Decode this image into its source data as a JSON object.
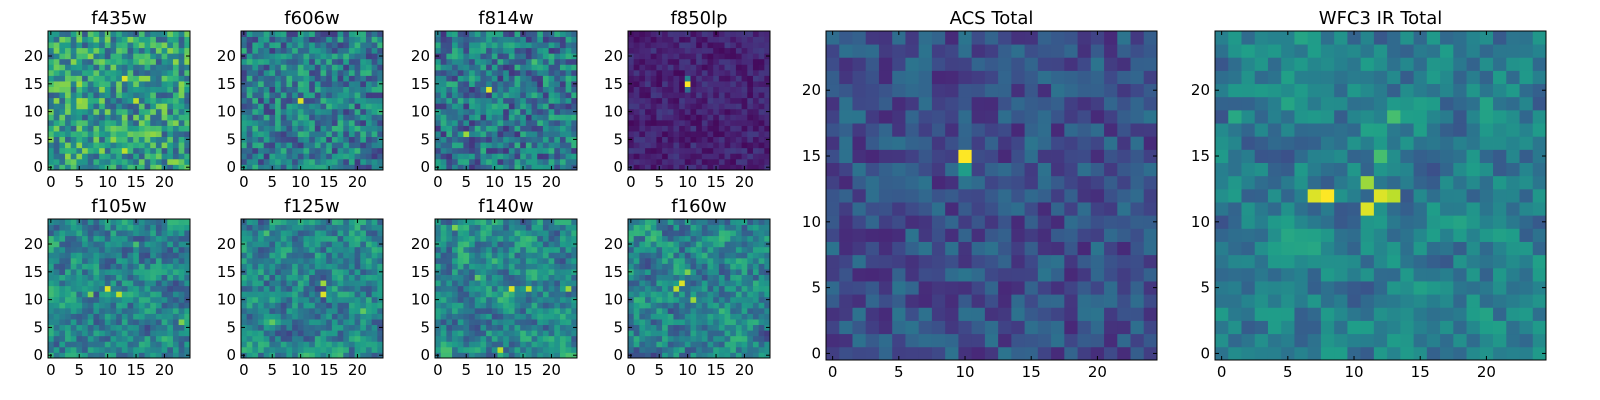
{
  "figure": {
    "description_panels": "Eight small heatmap cutouts (one per filter) plus two combined heatmaps"
  },
  "chart_data": [
    {
      "type": "heatmap",
      "title": "f435w",
      "xticks": [
        0,
        5,
        10,
        15,
        20
      ],
      "yticks": [
        0,
        5,
        10,
        15,
        20
      ],
      "xlim": [
        0,
        25
      ],
      "ylim": [
        0,
        25
      ],
      "pattern": "noise",
      "noise_base": 0.55,
      "noise_amp": 0.28,
      "hotspots": [
        [
          13,
          16,
          0.95
        ],
        [
          15,
          12,
          0.9
        ],
        [
          13,
          3,
          0.9
        ],
        [
          5,
          15,
          0.85
        ],
        [
          5,
          12,
          0.85
        ],
        [
          20,
          22,
          0.8
        ],
        [
          12,
          21,
          0.75
        ]
      ]
    },
    {
      "type": "heatmap",
      "title": "f606w",
      "xticks": [
        0,
        5,
        10,
        15,
        20
      ],
      "yticks": [
        0,
        5,
        10,
        15,
        20
      ],
      "xlim": [
        0,
        25
      ],
      "ylim": [
        0,
        25
      ],
      "pattern": "noise",
      "noise_base": 0.42,
      "noise_amp": 0.25,
      "hotspots": [
        [
          10,
          12,
          0.95
        ],
        [
          13,
          19,
          0.6
        ],
        [
          19,
          2,
          0.55
        ]
      ]
    },
    {
      "type": "heatmap",
      "title": "f814w",
      "xticks": [
        0,
        5,
        10,
        15,
        20
      ],
      "yticks": [
        0,
        5,
        10,
        15,
        20
      ],
      "xlim": [
        0,
        25
      ],
      "ylim": [
        0,
        25
      ],
      "pattern": "noise",
      "noise_base": 0.4,
      "noise_amp": 0.25,
      "hotspots": [
        [
          9,
          14,
          0.95
        ],
        [
          5,
          6,
          0.85
        ],
        [
          17,
          19,
          0.7
        ],
        [
          3,
          22,
          0.55
        ]
      ]
    },
    {
      "type": "heatmap",
      "title": "f850lp",
      "xticks": [
        0,
        5,
        10,
        15,
        20
      ],
      "yticks": [
        0,
        5,
        10,
        15,
        20
      ],
      "xlim": [
        0,
        25
      ],
      "ylim": [
        0,
        25
      ],
      "pattern": "noise",
      "noise_base": 0.1,
      "noise_amp": 0.08,
      "hotspots": [
        [
          10,
          15,
          1.0
        ],
        [
          10,
          16,
          0.45
        ],
        [
          10,
          14,
          0.35
        ]
      ]
    },
    {
      "type": "heatmap",
      "title": "f105w",
      "xticks": [
        0,
        5,
        10,
        15,
        20
      ],
      "yticks": [
        0,
        5,
        10,
        15,
        20
      ],
      "xlim": [
        0,
        25
      ],
      "ylim": [
        0,
        25
      ],
      "pattern": "blobby",
      "noise_base": 0.45,
      "noise_amp": 0.35,
      "hotspots": [
        [
          10,
          12,
          0.95
        ],
        [
          12,
          11,
          0.9
        ],
        [
          7,
          11,
          0.8
        ],
        [
          23,
          6,
          0.8
        ],
        [
          15,
          20,
          0.7
        ]
      ]
    },
    {
      "type": "heatmap",
      "title": "f125w",
      "xticks": [
        0,
        5,
        10,
        15,
        20
      ],
      "yticks": [
        0,
        5,
        10,
        15,
        20
      ],
      "xlim": [
        0,
        25
      ],
      "ylim": [
        0,
        25
      ],
      "pattern": "blobby",
      "noise_base": 0.45,
      "noise_amp": 0.35,
      "hotspots": [
        [
          14,
          11,
          0.95
        ],
        [
          14,
          13,
          0.85
        ],
        [
          21,
          8,
          0.75
        ],
        [
          5,
          6,
          0.75
        ],
        [
          4,
          22,
          0.7
        ]
      ]
    },
    {
      "type": "heatmap",
      "title": "f140w",
      "xticks": [
        0,
        5,
        10,
        15,
        20
      ],
      "yticks": [
        0,
        5,
        10,
        15,
        20
      ],
      "xlim": [
        0,
        25
      ],
      "ylim": [
        0,
        25
      ],
      "pattern": "blobby",
      "noise_base": 0.45,
      "noise_amp": 0.35,
      "hotspots": [
        [
          13,
          12,
          0.95
        ],
        [
          16,
          12,
          0.9
        ],
        [
          11,
          1,
          0.9
        ],
        [
          3,
          23,
          0.8
        ],
        [
          23,
          12,
          0.85
        ],
        [
          7,
          14,
          0.75
        ]
      ]
    },
    {
      "type": "heatmap",
      "title": "f160w",
      "xticks": [
        0,
        5,
        10,
        15,
        20
      ],
      "yticks": [
        0,
        5,
        10,
        15,
        20
      ],
      "xlim": [
        0,
        25
      ],
      "ylim": [
        0,
        25
      ],
      "pattern": "blobby",
      "noise_base": 0.45,
      "noise_amp": 0.35,
      "hotspots": [
        [
          9,
          13,
          0.95
        ],
        [
          8,
          12,
          0.9
        ],
        [
          11,
          10,
          0.85
        ],
        [
          10,
          15,
          0.8
        ],
        [
          4,
          21,
          0.7
        ]
      ]
    },
    {
      "type": "heatmap",
      "title": "ACS Total",
      "xticks": [
        0,
        5,
        10,
        15,
        20
      ],
      "yticks": [
        0,
        5,
        10,
        15,
        20
      ],
      "xlim": [
        0,
        25
      ],
      "ylim": [
        0,
        25
      ],
      "pattern": "noise",
      "noise_base": 0.25,
      "noise_amp": 0.14,
      "hotspots": [
        [
          10,
          15,
          1.0
        ],
        [
          10,
          14,
          0.55
        ]
      ]
    },
    {
      "type": "heatmap",
      "title": "WFC3 IR Total",
      "xticks": [
        0,
        5,
        10,
        15,
        20
      ],
      "yticks": [
        0,
        5,
        10,
        15,
        20
      ],
      "xlim": [
        0,
        25
      ],
      "ylim": [
        0,
        25
      ],
      "pattern": "blobby",
      "noise_base": 0.42,
      "noise_amp": 0.25,
      "hotspots": [
        [
          8,
          12,
          1.0
        ],
        [
          7,
          12,
          0.95
        ],
        [
          12,
          12,
          0.95
        ],
        [
          11,
          11,
          0.95
        ],
        [
          13,
          12,
          0.9
        ],
        [
          11,
          13,
          0.85
        ],
        [
          12,
          15,
          0.7
        ],
        [
          13,
          18,
          0.7
        ],
        [
          17,
          23,
          0.55
        ],
        [
          1,
          18,
          0.6
        ]
      ]
    }
  ]
}
